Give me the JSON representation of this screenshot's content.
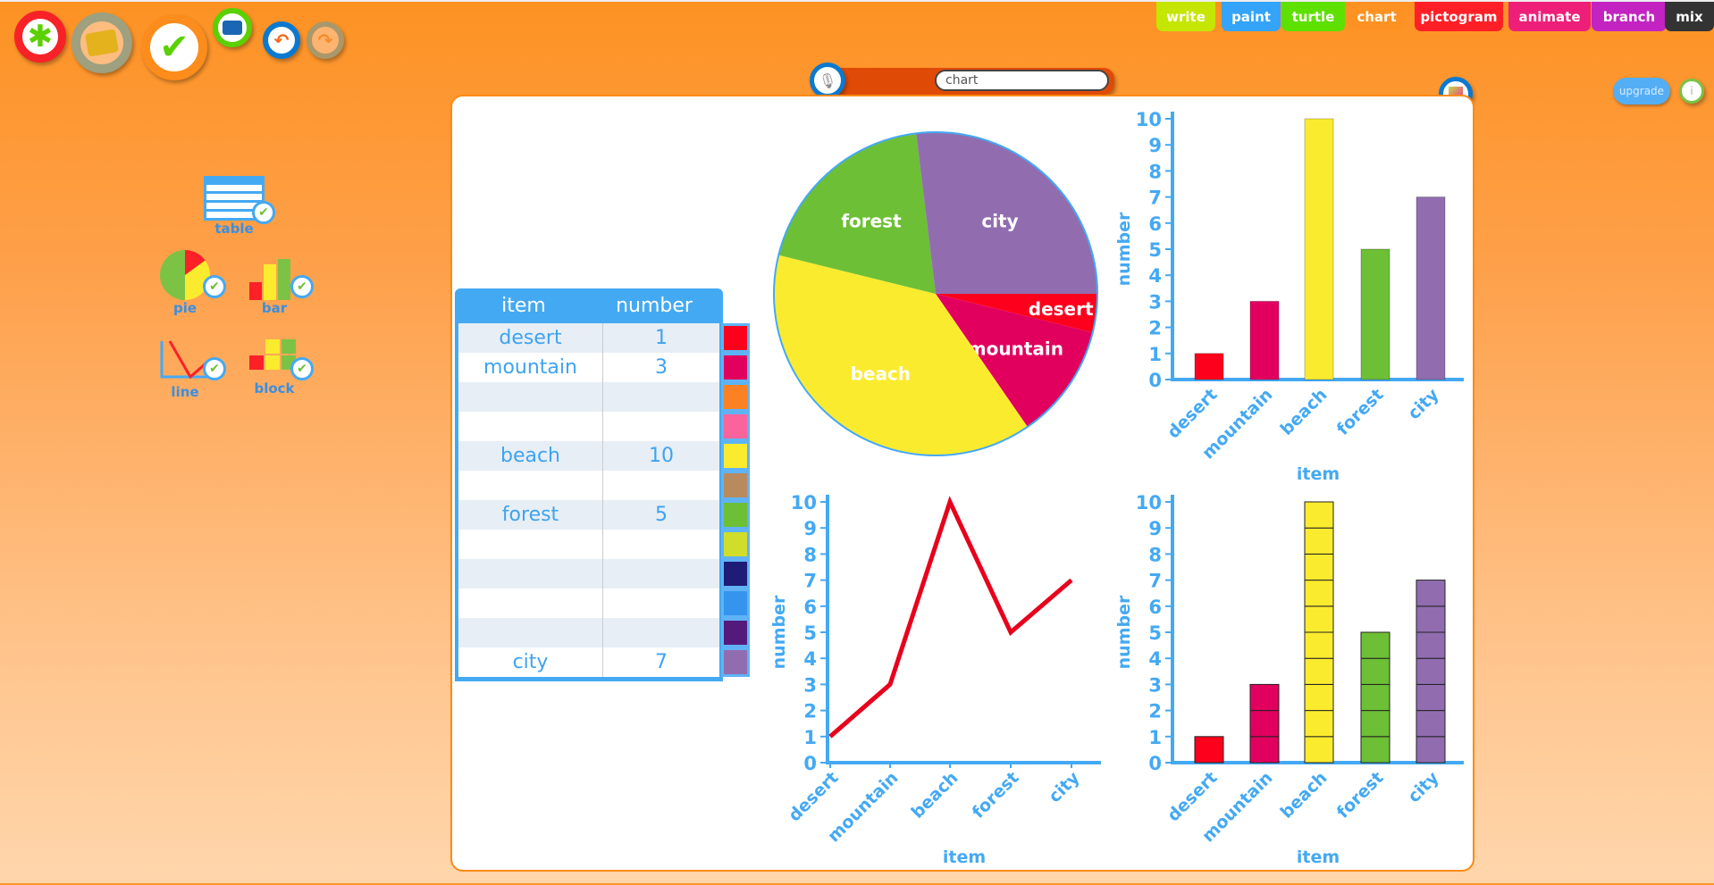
{
  "toolbar": {
    "icons": [
      "new-icon",
      "open-folder-icon",
      "check-icon",
      "print-icon",
      "undo-icon",
      "redo-icon"
    ]
  },
  "tabs": [
    {
      "label": "write",
      "color": "#c4e600"
    },
    {
      "label": "paint",
      "color": "#33a4fa"
    },
    {
      "label": "turtle",
      "color": "#5ee000"
    },
    {
      "label": "chart",
      "color": "#fd9223"
    },
    {
      "label": "pictogram",
      "color": "#ff2027"
    },
    {
      "label": "animate",
      "color": "#ee1f78"
    },
    {
      "label": "branch",
      "color": "#c223c1"
    },
    {
      "label": "mix",
      "color": "#333333"
    }
  ],
  "search": {
    "value": "chart"
  },
  "upgrade_label": "upgrade",
  "info_label": "i",
  "chart_types": {
    "table": "table",
    "pie": "pie",
    "bar": "bar",
    "line": "line",
    "block": "block"
  },
  "table": {
    "headers": [
      "item",
      "number"
    ],
    "rows": [
      [
        "desert",
        "1"
      ],
      [
        "mountain",
        "3"
      ],
      [
        "",
        ""
      ],
      [
        "",
        ""
      ],
      [
        "beach",
        "10"
      ],
      [
        "",
        ""
      ],
      [
        "forest",
        "5"
      ],
      [
        "",
        ""
      ],
      [
        "",
        ""
      ],
      [
        "",
        ""
      ],
      [
        "",
        ""
      ],
      [
        "city",
        "7"
      ]
    ],
    "swatches": [
      "#fd001c",
      "#e2005f",
      "#fb8122",
      "#fb639c",
      "#fbeb2e",
      "#b88a5d",
      "#6dbf35",
      "#d0dd2a",
      "#1f1c78",
      "#3595ee",
      "#531a7c",
      "#916db0"
    ]
  },
  "chart_data": [
    {
      "type": "pie",
      "categories": [
        "desert",
        "mountain",
        "beach",
        "forest",
        "city"
      ],
      "values": [
        1,
        3,
        10,
        5,
        7
      ],
      "colors": [
        "#fd001c",
        "#e2005f",
        "#fbeb2e",
        "#6dbf35",
        "#916db0"
      ]
    },
    {
      "type": "bar",
      "categories": [
        "desert",
        "mountain",
        "beach",
        "forest",
        "city"
      ],
      "values": [
        1,
        3,
        10,
        5,
        7
      ],
      "xlabel": "item",
      "ylabel": "number",
      "ylim": [
        0,
        10
      ],
      "yticks": [
        "0",
        "1",
        "2",
        "3",
        "4",
        "5",
        "6",
        "7",
        "8",
        "9",
        "10"
      ]
    },
    {
      "type": "line",
      "categories": [
        "desert",
        "mountain",
        "beach",
        "forest",
        "city"
      ],
      "values": [
        1,
        3,
        10,
        5,
        7
      ],
      "xlabel": "item",
      "ylabel": "number",
      "ylim": [
        0,
        10
      ],
      "yticks": [
        "0",
        "1",
        "2",
        "3",
        "4",
        "5",
        "6",
        "7",
        "8",
        "9",
        "10"
      ]
    },
    {
      "type": "bar",
      "subtype": "block",
      "categories": [
        "desert",
        "mountain",
        "beach",
        "forest",
        "city"
      ],
      "values": [
        1,
        3,
        10,
        5,
        7
      ],
      "xlabel": "item",
      "ylabel": "number",
      "ylim": [
        0,
        10
      ],
      "yticks": [
        "0",
        "1",
        "2",
        "3",
        "4",
        "5",
        "6",
        "7",
        "8",
        "9",
        "10"
      ]
    }
  ]
}
